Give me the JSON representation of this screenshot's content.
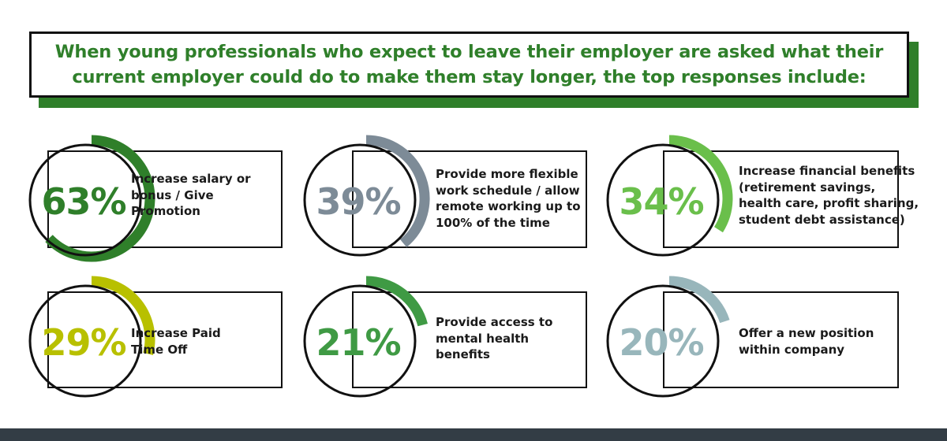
{
  "header": {
    "title": "When young professionals who expect to leave their employer are asked what their current employer could do to make them stay longer, the top responses include:"
  },
  "chart_data": {
    "type": "donut-stats",
    "title": "When young professionals who expect to leave their employer are asked what their current employer could do to make them stay longer, the top responses include:",
    "items": [
      {
        "value": 63,
        "display": "63%",
        "label": "Increase salary or bonus / Give Promotion",
        "color": "#2f7f2a"
      },
      {
        "value": 39,
        "display": "39%",
        "label": "Provide more flexible work schedule / allow remote working up to 100% of the time",
        "color": "#7d8b97"
      },
      {
        "value": 34,
        "display": "34%",
        "label": "Increase financial benefits (retirement savings, health care, profit sharing, student debt assistance)",
        "color": "#6abf4b"
      },
      {
        "value": 29,
        "display": "29%",
        "label": "Increase Paid Time Off",
        "color": "#b8c000"
      },
      {
        "value": 21,
        "display": "21%",
        "label": "Provide access to mental health benefits",
        "color": "#3f9a44"
      },
      {
        "value": 20,
        "display": "20%",
        "label": "Offer a new position within company",
        "color": "#98b6bb"
      }
    ]
  }
}
